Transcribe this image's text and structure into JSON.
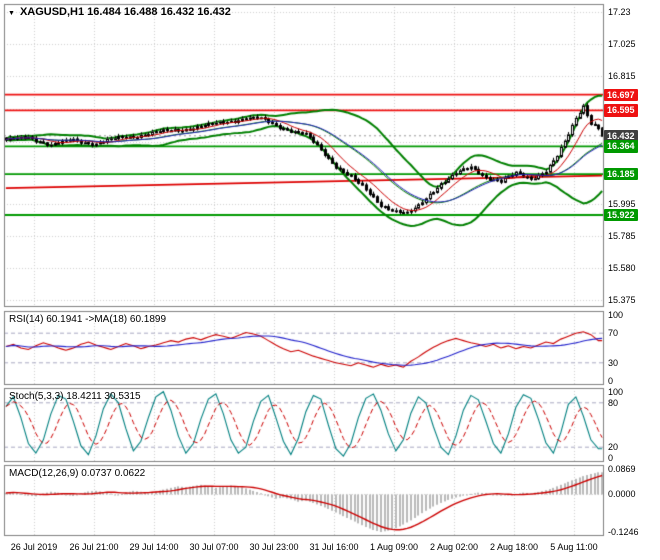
{
  "header": {
    "dropdown_icon": "▼",
    "symbol_info": "XAGUSD,H1 16.484 16.488 16.432 16.432"
  },
  "colors": {
    "background": "#ffffff",
    "grid": "#cfcfcf",
    "border": "#808080",
    "candle_up": "#ffffff",
    "candle_down": "#000000",
    "candle_outline": "#000000",
    "bollinger": "#008000",
    "ma_fast": "#cc0000",
    "ma_mid": "#2222bb",
    "trend_line": "#dd0000",
    "resistance": "#ee1111",
    "support": "#009900",
    "current_badge": "#3f3f3f",
    "current_line": "#999999",
    "rsi_line": "#cc0000",
    "rsi_ma": "#2222cc",
    "stoch_main": "#008080",
    "stoch_signal": "#cc0000",
    "macd_hist": "#b9b9b9",
    "macd_signal": "#cc0000",
    "indicator_level": "#a9a9c2"
  },
  "time_axis": {
    "labels": [
      "26 Jul 2019",
      "26 Jul 21:00",
      "29 Jul 14:00",
      "30 Jul 07:00",
      "30 Jul 23:00",
      "31 Jul 16:00",
      "1 Aug 09:00",
      "2 Aug 02:00",
      "2 Aug 18:00",
      "5 Aug 11:00"
    ]
  },
  "chart_data": [
    {
      "type": "candlestick",
      "symbol": "XAGUSD",
      "timeframe": "H1",
      "bars": 160,
      "price_range": [
        15.33,
        17.28
      ],
      "axis_labels": [
        {
          "label": "17.23",
          "price": 17.23
        },
        {
          "label": "17.025",
          "price": 17.025
        },
        {
          "label": "16.815",
          "price": 16.815
        },
        {
          "label": "15.995",
          "price": 15.995
        },
        {
          "label": "15.785",
          "price": 15.785
        },
        {
          "label": "15.580",
          "price": 15.58
        },
        {
          "label": "15.375",
          "price": 15.375
        }
      ],
      "grid_prices": [
        17.23,
        17.025,
        16.815,
        16.605,
        16.395,
        16.185,
        15.995,
        15.785,
        15.58,
        15.375
      ],
      "price_badges": [
        {
          "label": "16.697",
          "price": 16.697,
          "kind": "resistance"
        },
        {
          "label": "16.595",
          "price": 16.595,
          "kind": "resistance"
        },
        {
          "label": "16.432",
          "price": 16.432,
          "kind": "current"
        },
        {
          "label": "16.364",
          "price": 16.364,
          "kind": "support"
        },
        {
          "label": "16.185",
          "price": 16.185,
          "kind": "support"
        },
        {
          "label": "15.922",
          "price": 15.922,
          "kind": "support"
        }
      ],
      "close_anchors": [
        [
          0,
          16.4
        ],
        [
          6,
          16.43
        ],
        [
          12,
          16.37
        ],
        [
          18,
          16.41
        ],
        [
          24,
          16.38
        ],
        [
          30,
          16.42
        ],
        [
          36,
          16.44
        ],
        [
          42,
          16.46
        ],
        [
          48,
          16.48
        ],
        [
          54,
          16.5
        ],
        [
          60,
          16.53
        ],
        [
          64,
          16.55
        ],
        [
          68,
          16.54
        ],
        [
          72,
          16.5
        ],
        [
          76,
          16.47
        ],
        [
          80,
          16.44
        ],
        [
          84,
          16.34
        ],
        [
          88,
          16.24
        ],
        [
          92,
          16.17
        ],
        [
          96,
          16.08
        ],
        [
          100,
          15.99
        ],
        [
          104,
          15.95
        ],
        [
          107,
          15.93
        ],
        [
          110,
          15.98
        ],
        [
          113,
          16.06
        ],
        [
          116,
          16.13
        ],
        [
          120,
          16.19
        ],
        [
          124,
          16.23
        ],
        [
          128,
          16.17
        ],
        [
          132,
          16.14
        ],
        [
          136,
          16.19
        ],
        [
          140,
          16.16
        ],
        [
          144,
          16.21
        ],
        [
          147,
          16.3
        ],
        [
          150,
          16.44
        ],
        [
          152,
          16.55
        ],
        [
          154,
          16.63
        ],
        [
          156,
          16.52
        ],
        [
          158,
          16.484
        ],
        [
          159,
          16.432
        ]
      ],
      "last_ohlc": {
        "open": 16.484,
        "high": 16.488,
        "low": 16.432,
        "close": 16.432
      },
      "trend_line": {
        "from": [
          0,
          16.095
        ],
        "to": [
          159,
          16.175
        ]
      },
      "indicators": [
        "Bollinger Bands (20,2)",
        "SMA 21",
        "SMA 8"
      ]
    },
    {
      "type": "line",
      "name": "RSI",
      "label": "RSI(14) 60.1941 ->MA(18) 60.1899",
      "axis_labels": [
        {
          "label": "100",
          "value": 100
        },
        {
          "label": "70",
          "value": 70
        },
        {
          "label": "30",
          "value": 30
        },
        {
          "label": "0",
          "value": 0
        }
      ],
      "levels": [
        70,
        30
      ],
      "range": [
        0,
        100
      ],
      "sample_step": 2,
      "ma_period": 18,
      "values": [
        52,
        55,
        50,
        48,
        53,
        57,
        54,
        50,
        47,
        50,
        55,
        58,
        54,
        51,
        48,
        52,
        56,
        53,
        49,
        52,
        54,
        57,
        60,
        58,
        62,
        64,
        61,
        65,
        68,
        66,
        63,
        67,
        71,
        69,
        66,
        60,
        54,
        49,
        45,
        47,
        43,
        39,
        36,
        33,
        30,
        28,
        26,
        30,
        27,
        24,
        28,
        25,
        27,
        24,
        32,
        38,
        45,
        51,
        56,
        60,
        63,
        60,
        57,
        55,
        52,
        55,
        50,
        53,
        49,
        52,
        50,
        54,
        58,
        56,
        62,
        66,
        70,
        72,
        68,
        60
      ]
    },
    {
      "type": "line",
      "name": "Stochastic",
      "label": "Stoch(5,3,3) 18.4211 30.5315",
      "axis_labels": [
        {
          "label": "100",
          "value": 100
        },
        {
          "label": "80",
          "value": 80
        },
        {
          "label": "20",
          "value": 20
        },
        {
          "label": "0",
          "value": 0
        }
      ],
      "levels": [
        80,
        20
      ],
      "range": [
        0,
        100
      ],
      "sample_step": 2,
      "signal_period": 6,
      "values": [
        75,
        88,
        60,
        25,
        12,
        30,
        65,
        90,
        85,
        55,
        22,
        10,
        35,
        72,
        92,
        80,
        45,
        15,
        28,
        60,
        88,
        95,
        70,
        35,
        12,
        25,
        58,
        85,
        92,
        65,
        30,
        12,
        20,
        55,
        82,
        90,
        60,
        28,
        10,
        32,
        68,
        90,
        85,
        50,
        18,
        8,
        25,
        60,
        86,
        92,
        70,
        38,
        15,
        30,
        66,
        88,
        80,
        48,
        20,
        10,
        35,
        70,
        90,
        84,
        55,
        25,
        12,
        38,
        74,
        91,
        86,
        58,
        26,
        12,
        40,
        78,
        88,
        62,
        30,
        18
      ]
    },
    {
      "type": "bar",
      "name": "MACD",
      "label": "MACD(12,26,9) 0.0737 0.0622",
      "axis_labels": [
        {
          "label": "0.0869",
          "value": 0.0869
        },
        {
          "label": "0.0000",
          "value": 0
        },
        {
          "label": "-0.1246",
          "value": -0.1246
        }
      ],
      "range": [
        -0.138,
        0.098
      ],
      "sample_step": 2,
      "signal_period": 9,
      "values": [
        0.005,
        0.008,
        0.002,
        -0.004,
        -0.006,
        0.003,
        0.009,
        0.006,
        -0.002,
        -0.005,
        0.004,
        0.01,
        0.012,
        0.008,
        0.003,
        -0.003,
        0.006,
        0.012,
        0.009,
        0.004,
        0.01,
        0.016,
        0.022,
        0.027,
        0.024,
        0.028,
        0.032,
        0.027,
        0.022,
        0.026,
        0.03,
        0.026,
        0.02,
        0.012,
        0.004,
        -0.006,
        -0.014,
        -0.01,
        -0.016,
        -0.024,
        -0.02,
        -0.028,
        -0.038,
        -0.048,
        -0.06,
        -0.072,
        -0.084,
        -0.096,
        -0.108,
        -0.118,
        -0.1246,
        -0.12,
        -0.112,
        -0.1,
        -0.086,
        -0.07,
        -0.054,
        -0.04,
        -0.028,
        -0.018,
        -0.01,
        -0.004,
        0.002,
        0.006,
        0.004,
        0.0,
        -0.004,
        -0.002,
        0.002,
        0.006,
        0.004,
        0.008,
        0.014,
        0.022,
        0.032,
        0.042,
        0.052,
        0.061,
        0.068,
        0.0737
      ]
    }
  ]
}
